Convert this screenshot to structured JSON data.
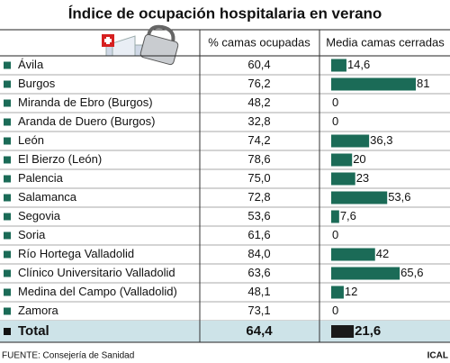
{
  "title": "Índice de ocupación hospitalaria en verano",
  "table": {
    "columns": [
      "% camas ocupadas",
      "Media camas cerradas"
    ],
    "bar_color": "#1b6b57",
    "total_bar_color": "#1a1a1a",
    "bar_max": 81,
    "rows": [
      {
        "name": "Ávila",
        "occupancy": "60,4",
        "closed": {
          "value": 14.6,
          "label": "14,6"
        }
      },
      {
        "name": "Burgos",
        "occupancy": "76,2",
        "closed": 81
      },
      {
        "name": "Miranda de Ebro (Burgos)",
        "occupancy": "48,2",
        "closed": 0
      },
      {
        "name": "Aranda de Duero (Burgos)",
        "occupancy": "32,8",
        "closed": 0
      },
      {
        "name": "León",
        "occupancy": "74,2",
        "closed": {
          "value": 36.3,
          "label": "36,3"
        }
      },
      {
        "name": "El Bierzo (León)",
        "occupancy": "78,6",
        "closed": 20
      },
      {
        "name": "Palencia",
        "occupancy": "75,0",
        "closed": 23
      },
      {
        "name": "Salamanca",
        "occupancy": "72,8",
        "closed": {
          "value": 53.6,
          "label": "53,6"
        }
      },
      {
        "name": "Segovia",
        "occupancy": "53,6",
        "closed": {
          "value": 7.6,
          "label": "7,6"
        }
      },
      {
        "name": "Soria",
        "occupancy": "61,6",
        "closed": 0
      },
      {
        "name": "Río Hortega Valladolid",
        "occupancy": "84,0",
        "closed": 42
      },
      {
        "name": "Clínico Universitario Valladolid",
        "occupancy": "63,6",
        "closed": {
          "value": 65.6,
          "label": "65,6"
        }
      },
      {
        "name": "Medina del Campo (Valladolid)",
        "occupancy": "48,1",
        "closed": 12
      },
      {
        "name": "Zamora",
        "occupancy": "73,1",
        "closed": 0
      }
    ],
    "total": {
      "name": "Total",
      "occupancy": "64,4",
      "closed": {
        "value": 21.6,
        "label": "21,6"
      }
    }
  },
  "footer": {
    "source": "FUENTE: Consejería de Sanidad",
    "credit": "ICAL"
  }
}
